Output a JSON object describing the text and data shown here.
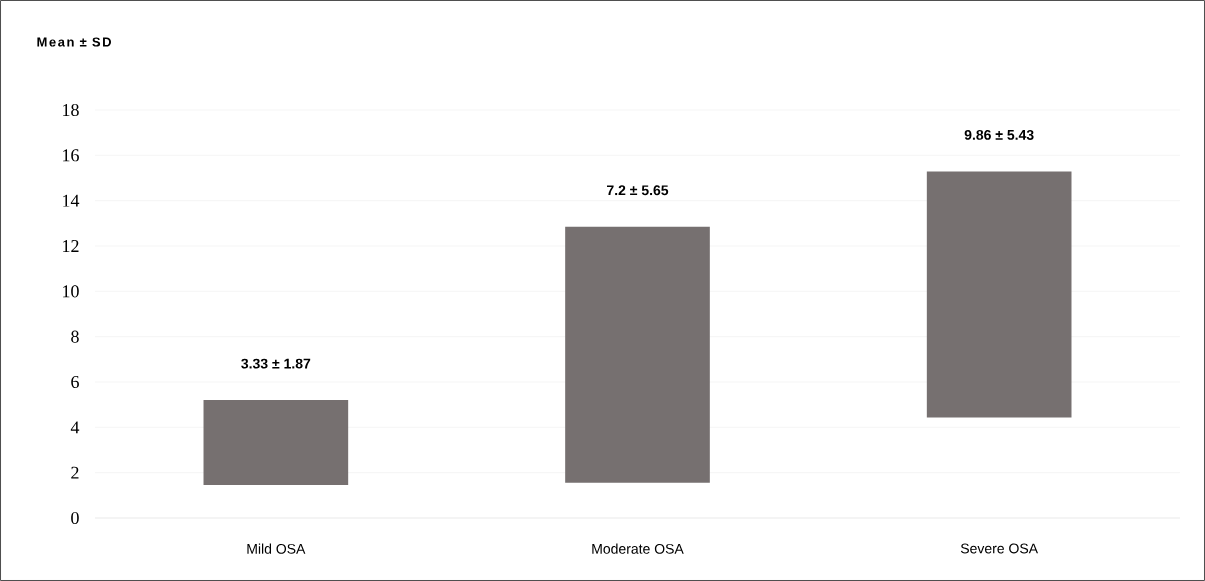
{
  "chart_data": {
    "type": "bar",
    "title": "Mean ± SD",
    "categories": [
      "Mild OSA",
      "Moderate OSA",
      "Severe OSA"
    ],
    "base": [
      1.46,
      1.55,
      4.43
    ],
    "values": [
      3.74,
      11.3,
      10.86
    ],
    "annotations": [
      {
        "text": "3.33 ± 1.87",
        "x": "Mild OSA",
        "y": 5.2
      },
      {
        "text": "7.2 ± 5.65",
        "x": "Moderate OSA",
        "y": 12.85
      },
      {
        "text": "9.86 ± 5.43",
        "x": "Severe OSA",
        "y": 15.29
      }
    ],
    "color": "#767070",
    "ylim": [
      0,
      18
    ],
    "yticks": [
      0,
      2,
      4,
      6,
      8,
      10,
      12,
      14,
      16,
      18
    ],
    "grid": "y"
  }
}
